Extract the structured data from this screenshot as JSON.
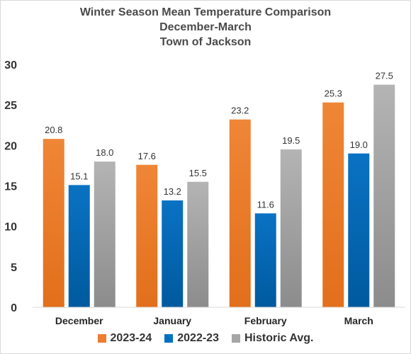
{
  "chart_data": {
    "type": "bar",
    "title": "Winter Season Mean Temperature Comparison",
    "subtitle": "December-March",
    "subtitle2": "Town of Jackson",
    "categories": [
      "December",
      "January",
      "February",
      "March"
    ],
    "series": [
      {
        "name": "2023-24",
        "color": "#ed7d31",
        "values": [
          20.8,
          17.6,
          23.2,
          25.3
        ]
      },
      {
        "name": "2022-23",
        "color": "#0070c0",
        "values": [
          15.1,
          13.2,
          11.6,
          19.0
        ]
      },
      {
        "name": "Historic Avg.",
        "color": "#a6a6a6",
        "values": [
          18.0,
          15.5,
          19.5,
          27.5
        ]
      }
    ],
    "ylim": [
      0,
      30
    ],
    "yticks": [
      0,
      5,
      10,
      15,
      20,
      25,
      30
    ],
    "xlabel": "",
    "ylabel": "",
    "grid": false,
    "legend_position": "bottom",
    "data_labels": true
  }
}
